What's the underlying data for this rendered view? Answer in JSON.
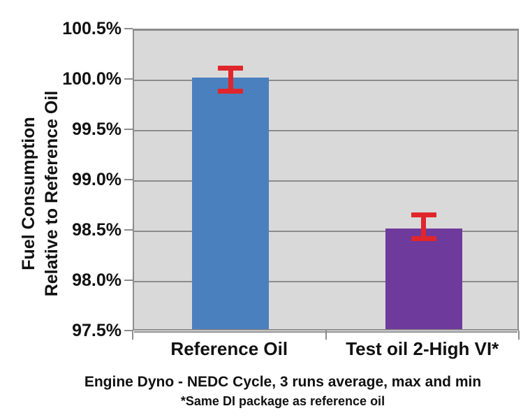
{
  "chart_data": {
    "type": "bar",
    "title": "",
    "categories": [
      "Reference Oil",
      "Test oil 2-High VI*"
    ],
    "values": [
      100.0,
      98.5
    ],
    "bar_colors": [
      "#4a80be",
      "#6e3a9c"
    ],
    "error_max": [
      100.12,
      98.66
    ],
    "error_min": [
      99.89,
      98.43
    ],
    "error_color": "#e0262b",
    "ylim": [
      97.5,
      100.5
    ],
    "ytick_step": 0.5,
    "ytick_suffix": "%",
    "ytick_decimals": 1,
    "grid": "horizontal",
    "legend": "none",
    "plot_background_color": "#d9d9d9",
    "gridline_color": "#8c8c8c",
    "ylabel_line1": "Fuel Consumption",
    "ylabel_line2": "Relative to Reference Oil",
    "xlabel": "",
    "caption_line1": "Engine Dyno - NEDC Cycle, 3 runs average, max and min",
    "caption_line2": "*Same DI package as reference oil"
  }
}
